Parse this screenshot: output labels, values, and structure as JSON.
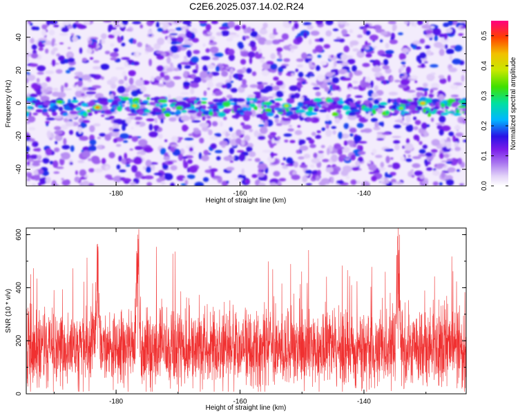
{
  "title": "C2E6.2025.037.14.02.R24",
  "chart_data": [
    {
      "type": "heatmap",
      "xlabel": "Height of straight line (km)",
      "ylabel": "Frequency (Hz)",
      "xlim": [
        -194.5,
        -123.5
      ],
      "ylim": [
        -50,
        50
      ],
      "x_ticks": [
        -180,
        -160,
        -140
      ],
      "y_ticks": [
        -40,
        -20,
        0,
        20,
        40
      ],
      "colorbar": {
        "label": "Normalized spectral amplitude",
        "range": [
          0,
          0.55
        ],
        "ticks": [
          0.0,
          0.1,
          0.2,
          0.3,
          0.4,
          0.5
        ],
        "colors": [
          "#ffffff",
          "#b491f0",
          "#7b1dea",
          "#2a12e6",
          "#00b7ff",
          "#00e0a0",
          "#40e000",
          "#c8e800",
          "#f2c000",
          "#ff4000",
          "#ff0080"
        ]
      },
      "signal_band_hz": [
        -7,
        3
      ],
      "signal_center_hz": -2,
      "hot_spots": [
        {
          "x": -183,
          "y": -2.5,
          "value": 0.47
        },
        {
          "x": -177,
          "y": -1.5,
          "value": 0.42
        },
        {
          "x": -152.5,
          "y": -1.5,
          "value": 0.38
        },
        {
          "x": -134,
          "y": -3,
          "value": 0.36
        },
        {
          "x": -130.5,
          "y": 0,
          "value": 0.44
        }
      ],
      "grid": false
    },
    {
      "type": "line",
      "xlabel": "Height of straight line (km)",
      "ylabel": "SNR (10 * v/v)",
      "xlim": [
        -194.5,
        -123.5
      ],
      "ylim": [
        0,
        625
      ],
      "x_ticks": [
        -180,
        -160,
        -140
      ],
      "y_ticks": [
        0,
        200,
        400,
        600
      ],
      "color": "#f03030",
      "baseline_range": [
        90,
        250
      ],
      "peaks": [
        {
          "x": -183,
          "y": 565
        },
        {
          "x": -176.5,
          "y": 600
        },
        {
          "x": -134.5,
          "y": 625
        }
      ],
      "grid": false
    }
  ]
}
